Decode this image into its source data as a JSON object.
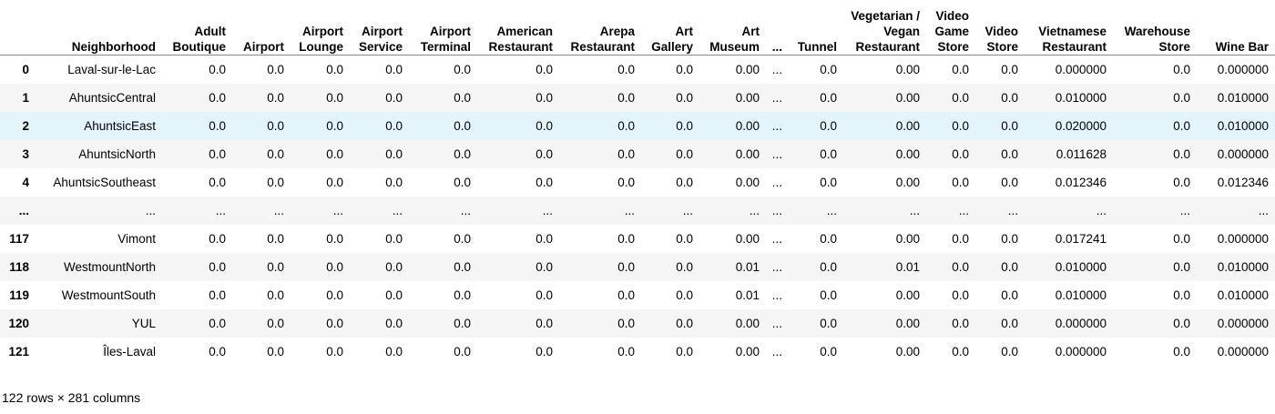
{
  "table": {
    "columns": [
      "",
      "Neighborhood",
      "Adult Boutique",
      "Airport",
      "Airport Lounge",
      "Airport Service",
      "Airport Terminal",
      "American Restaurant",
      "Arepa Restaurant",
      "Art Gallery",
      "Art Museum",
      "...",
      "Tunnel",
      "Vegetarian / Vegan Restaurant",
      "Video Game Store",
      "Video Store",
      "Vietnamese Restaurant",
      "Warehouse Store",
      "Wine Bar"
    ],
    "rows": [
      {
        "index": "0",
        "cells": [
          "Laval-sur-le-Lac",
          "0.0",
          "0.0",
          "0.0",
          "0.0",
          "0.0",
          "0.0",
          "0.0",
          "0.0",
          "0.00",
          "...",
          "0.0",
          "0.00",
          "0.0",
          "0.0",
          "0.000000",
          "0.0",
          "0.000000"
        ]
      },
      {
        "index": "1",
        "cells": [
          "AhuntsicCentral",
          "0.0",
          "0.0",
          "0.0",
          "0.0",
          "0.0",
          "0.0",
          "0.0",
          "0.0",
          "0.00",
          "...",
          "0.0",
          "0.00",
          "0.0",
          "0.0",
          "0.010000",
          "0.0",
          "0.010000"
        ]
      },
      {
        "index": "2",
        "cells": [
          "AhuntsicEast",
          "0.0",
          "0.0",
          "0.0",
          "0.0",
          "0.0",
          "0.0",
          "0.0",
          "0.0",
          "0.00",
          "...",
          "0.0",
          "0.00",
          "0.0",
          "0.0",
          "0.020000",
          "0.0",
          "0.010000"
        ]
      },
      {
        "index": "3",
        "cells": [
          "AhuntsicNorth",
          "0.0",
          "0.0",
          "0.0",
          "0.0",
          "0.0",
          "0.0",
          "0.0",
          "0.0",
          "0.00",
          "...",
          "0.0",
          "0.00",
          "0.0",
          "0.0",
          "0.011628",
          "0.0",
          "0.000000"
        ]
      },
      {
        "index": "4",
        "cells": [
          "AhuntsicSoutheast",
          "0.0",
          "0.0",
          "0.0",
          "0.0",
          "0.0",
          "0.0",
          "0.0",
          "0.0",
          "0.00",
          "...",
          "0.0",
          "0.00",
          "0.0",
          "0.0",
          "0.012346",
          "0.0",
          "0.012346"
        ]
      },
      {
        "index": "...",
        "cells": [
          "...",
          "...",
          "...",
          "...",
          "...",
          "...",
          "...",
          "...",
          "...",
          "...",
          "...",
          "...",
          "...",
          "...",
          "...",
          "...",
          "...",
          "..."
        ]
      },
      {
        "index": "117",
        "cells": [
          "Vimont",
          "0.0",
          "0.0",
          "0.0",
          "0.0",
          "0.0",
          "0.0",
          "0.0",
          "0.0",
          "0.00",
          "...",
          "0.0",
          "0.00",
          "0.0",
          "0.0",
          "0.017241",
          "0.0",
          "0.000000"
        ]
      },
      {
        "index": "118",
        "cells": [
          "WestmountNorth",
          "0.0",
          "0.0",
          "0.0",
          "0.0",
          "0.0",
          "0.0",
          "0.0",
          "0.0",
          "0.01",
          "...",
          "0.0",
          "0.01",
          "0.0",
          "0.0",
          "0.010000",
          "0.0",
          "0.010000"
        ]
      },
      {
        "index": "119",
        "cells": [
          "WestmountSouth",
          "0.0",
          "0.0",
          "0.0",
          "0.0",
          "0.0",
          "0.0",
          "0.0",
          "0.0",
          "0.01",
          "...",
          "0.0",
          "0.00",
          "0.0",
          "0.0",
          "0.010000",
          "0.0",
          "0.010000"
        ]
      },
      {
        "index": "120",
        "cells": [
          "YUL",
          "0.0",
          "0.0",
          "0.0",
          "0.0",
          "0.0",
          "0.0",
          "0.0",
          "0.0",
          "0.00",
          "...",
          "0.0",
          "0.00",
          "0.0",
          "0.0",
          "0.000000",
          "0.0",
          "0.000000"
        ]
      },
      {
        "index": "121",
        "cells": [
          "Îles-Laval",
          "0.0",
          "0.0",
          "0.0",
          "0.0",
          "0.0",
          "0.0",
          "0.0",
          "0.0",
          "0.00",
          "...",
          "0.0",
          "0.00",
          "0.0",
          "0.0",
          "0.000000",
          "0.0",
          "0.000000"
        ]
      }
    ],
    "highlighted_row": 2
  },
  "summary": "122 rows × 281 columns",
  "colors": {
    "row_stripe": "#f5f5f5",
    "row_hover": "#e3f4fb",
    "header_border": "#8a8a8a"
  }
}
